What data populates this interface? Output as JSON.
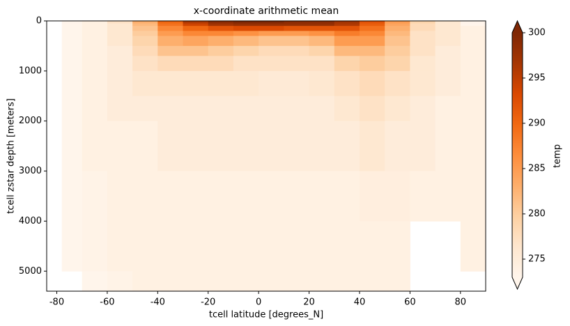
{
  "chart_data": {
    "type": "heatmap",
    "title": "x-coordinate arithmetic mean",
    "x_label": "tcell latitude [degrees_N]",
    "y_label": "tcell zstar depth [meters]",
    "x_edges": [
      -78,
      -70,
      -60,
      -50,
      -40,
      -30,
      -20,
      -10,
      0,
      10,
      20,
      30,
      40,
      50,
      60,
      70,
      80,
      90
    ],
    "y_edges": [
      0,
      50,
      100,
      200,
      300,
      500,
      700,
      1000,
      1500,
      2000,
      3000,
      4000,
      5000,
      5400
    ],
    "values": [
      [
        273,
        274,
        277,
        283,
        290,
        296,
        299,
        300,
        300,
        299,
        299,
        297,
        292,
        285,
        279,
        276,
        273
      ],
      [
        273,
        274,
        276,
        282,
        289,
        294,
        297,
        298,
        298,
        298,
        298,
        296,
        291,
        284,
        278,
        276,
        273
      ],
      [
        273,
        274,
        276,
        281,
        287,
        290,
        292,
        293,
        293,
        292,
        292,
        292,
        289,
        283,
        278,
        276,
        274
      ],
      [
        273,
        274,
        276,
        280,
        285,
        287,
        287,
        286,
        285,
        285,
        286,
        288,
        287,
        282,
        277,
        276,
        274
      ],
      [
        273,
        274,
        276,
        279,
        283,
        284,
        283,
        282,
        281,
        281,
        282,
        285,
        285,
        281,
        277,
        276,
        274
      ],
      [
        273,
        274,
        275,
        278,
        281,
        281,
        280,
        279,
        278,
        278,
        279,
        282,
        282,
        280,
        277,
        275,
        274
      ],
      [
        273,
        274,
        275,
        277,
        278,
        278,
        278,
        277,
        277,
        277,
        277,
        279,
        280,
        279,
        276,
        275,
        274
      ],
      [
        273,
        274,
        275,
        276,
        276,
        276,
        276,
        276,
        275.5,
        275.5,
        276,
        277,
        278,
        277,
        276,
        275,
        274
      ],
      [
        273,
        274,
        275,
        275,
        275,
        275,
        275,
        275,
        275,
        275,
        275,
        276,
        277,
        276,
        275,
        274,
        274
      ],
      [
        273,
        274,
        274,
        274,
        275,
        275,
        275,
        275,
        275,
        275,
        275,
        275,
        276,
        275,
        275,
        274,
        274
      ],
      [
        273,
        273.5,
        274,
        274,
        274,
        274,
        274,
        274,
        274,
        274,
        274,
        274,
        274.5,
        274.5,
        274,
        274,
        274
      ],
      [
        273,
        273.5,
        274,
        274,
        274,
        274,
        274,
        274,
        274,
        274,
        274,
        274,
        274,
        274,
        null,
        null,
        274
      ],
      [
        null,
        273,
        273.5,
        274,
        274,
        274,
        274,
        274,
        274,
        274,
        274,
        274,
        274,
        274,
        null,
        null,
        null
      ]
    ],
    "colormap": "Oranges",
    "xlim": [
      -84,
      90
    ],
    "ylim": [
      0,
      5400
    ],
    "y_inverted": true,
    "xticks": [
      -80,
      -60,
      -40,
      -20,
      0,
      20,
      40,
      60,
      80
    ],
    "yticks": [
      0,
      1000,
      2000,
      3000,
      4000,
      5000
    ],
    "clim": [
      273,
      300
    ],
    "cticks": [
      275,
      280,
      285,
      290,
      295,
      300
    ],
    "colorbar_label": "temp",
    "colorbar_extend": "both"
  }
}
